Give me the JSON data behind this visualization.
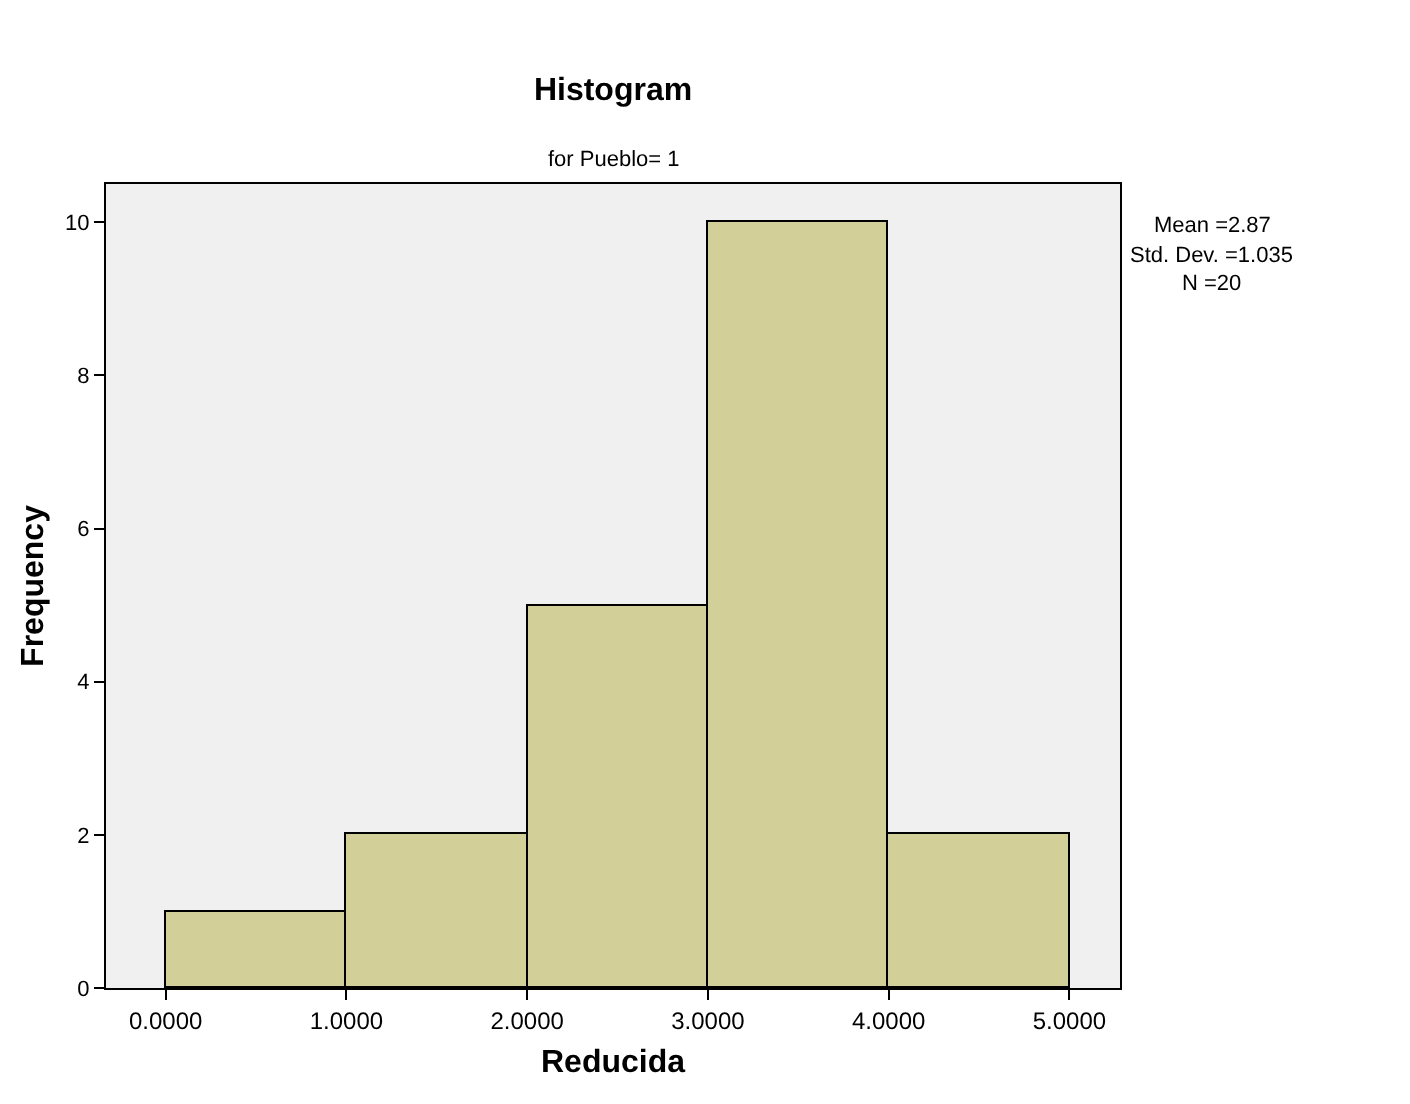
{
  "chart_data": {
    "type": "histogram",
    "title": "Histogram",
    "subtitle": "for Pueblo= 1",
    "xlabel": "Reducida",
    "ylabel": "Frequency",
    "annotations": [
      "Mean =2.87",
      "Std. Dev. =1.035",
      "N =20"
    ],
    "bins": [
      0,
      1,
      2,
      3,
      4,
      5
    ],
    "values": [
      1,
      2,
      5,
      10,
      2
    ],
    "color": "#d3cf99",
    "xlim": [
      -0.33,
      5.28
    ],
    "ylim": [
      0,
      10.5
    ],
    "xticks": [
      {
        "value": 0,
        "label": "0.0000"
      },
      {
        "value": 1,
        "label": "1.0000"
      },
      {
        "value": 2,
        "label": "2.0000"
      },
      {
        "value": 3,
        "label": "3.0000"
      },
      {
        "value": 4,
        "label": "4.0000"
      },
      {
        "value": 5,
        "label": "5.0000"
      }
    ],
    "yticks": [
      0,
      2,
      4,
      6,
      8,
      10
    ],
    "grid": false,
    "legend": false
  }
}
